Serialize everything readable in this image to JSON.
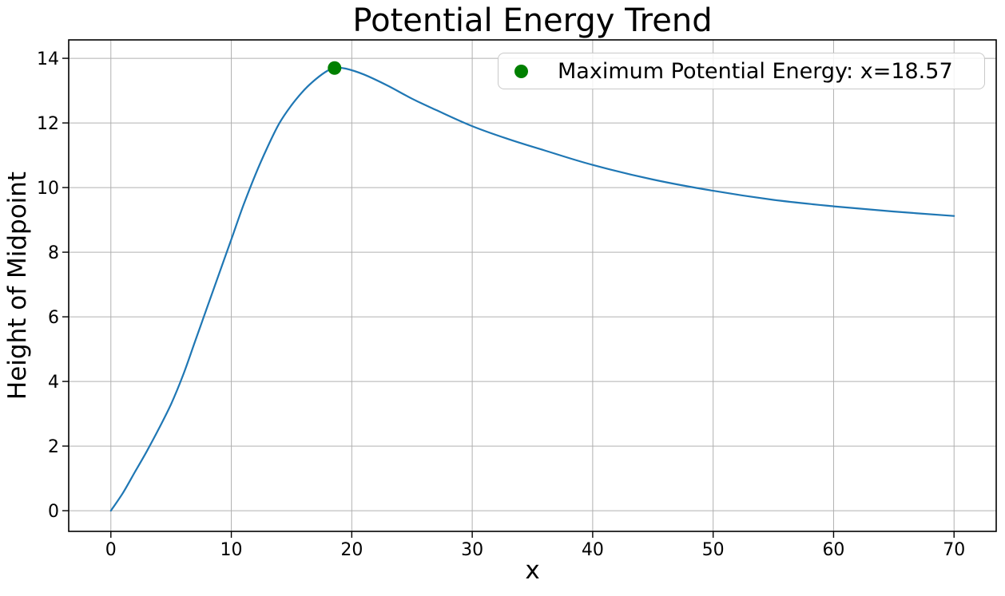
{
  "chart_data": {
    "type": "line",
    "title": "Potential Energy Trend",
    "xlabel": "x",
    "ylabel": "Height of Midpoint",
    "xlim": [
      -3.5,
      73.5
    ],
    "ylim": [
      -0.64,
      14.57
    ],
    "xticks": [
      0,
      10,
      20,
      30,
      40,
      50,
      60,
      70
    ],
    "yticks": [
      0,
      2,
      4,
      6,
      8,
      10,
      12,
      14
    ],
    "grid": true,
    "legend_position": "upper right",
    "series": [
      {
        "name": "potential-energy-curve",
        "type": "line",
        "color": "#1f77b4",
        "x": [
          0,
          1,
          2,
          3,
          4,
          5,
          6,
          7,
          8,
          9,
          10,
          11,
          12,
          13,
          14,
          15,
          16,
          17,
          18,
          18.57,
          19.5,
          21,
          23,
          25,
          27,
          30,
          33,
          36,
          40,
          45,
          50,
          55,
          60,
          65,
          70
        ],
        "y": [
          0,
          0.55,
          1.2,
          1.85,
          2.55,
          3.3,
          4.2,
          5.25,
          6.3,
          7.35,
          8.4,
          9.45,
          10.4,
          11.25,
          12.0,
          12.55,
          13.0,
          13.35,
          13.62,
          13.7,
          13.68,
          13.5,
          13.15,
          12.75,
          12.4,
          11.9,
          11.5,
          11.15,
          10.7,
          10.25,
          9.9,
          9.62,
          9.42,
          9.26,
          9.12
        ]
      },
      {
        "name": "maximum-point",
        "type": "scatter",
        "color": "#008000",
        "label": "Maximum Potential Energy: x=18.57",
        "x": [
          18.57
        ],
        "y": [
          13.7
        ]
      }
    ],
    "colors": {
      "line": "#1f77b4",
      "marker": "#008000",
      "grid": "#b0b0b0",
      "spine": "#000000",
      "tick_text": "#000000",
      "legend_border": "#c9c9c9"
    }
  }
}
